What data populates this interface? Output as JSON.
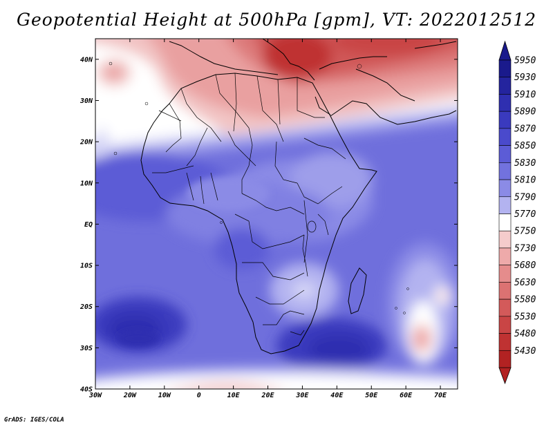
{
  "title": "Geopotential Height at 500hPa [gpm], VT: 2022012512",
  "credit": "GrADS: IGES/COLA",
  "map": {
    "lon_range": [
      -30,
      75
    ],
    "lat_range": [
      -40,
      45
    ],
    "lat_ticks": [
      {
        "value": 40,
        "label": "40N"
      },
      {
        "value": 30,
        "label": "30N"
      },
      {
        "value": 20,
        "label": "20N"
      },
      {
        "value": 10,
        "label": "10N"
      },
      {
        "value": 0,
        "label": "EQ"
      },
      {
        "value": -10,
        "label": "10S"
      },
      {
        "value": -20,
        "label": "20S"
      },
      {
        "value": -30,
        "label": "30S"
      },
      {
        "value": -40,
        "label": "40S"
      }
    ],
    "lon_ticks": [
      {
        "value": -30,
        "label": "30W"
      },
      {
        "value": -20,
        "label": "20W"
      },
      {
        "value": -10,
        "label": "10W"
      },
      {
        "value": 0,
        "label": "0"
      },
      {
        "value": 10,
        "label": "10E"
      },
      {
        "value": 20,
        "label": "20E"
      },
      {
        "value": 30,
        "label": "30E"
      },
      {
        "value": 40,
        "label": "40E"
      },
      {
        "value": 50,
        "label": "50E"
      },
      {
        "value": 60,
        "label": "60E"
      },
      {
        "value": 70,
        "label": "70E"
      }
    ]
  },
  "colorbar": {
    "levels": [
      {
        "label": "5950",
        "color": "#1a1a8c"
      },
      {
        "label": "5930",
        "color": "#24249e"
      },
      {
        "label": "5910",
        "color": "#2f2fb0"
      },
      {
        "label": "5890",
        "color": "#3a3abe"
      },
      {
        "label": "5870",
        "color": "#4a4acc"
      },
      {
        "label": "5850",
        "color": "#5c5cd6"
      },
      {
        "label": "5830",
        "color": "#7272de"
      },
      {
        "label": "5810",
        "color": "#8b8be6"
      },
      {
        "label": "5790",
        "color": "#b3b3f0"
      },
      {
        "label": "5770",
        "color": "#ffffff"
      },
      {
        "label": "5750",
        "color": "#f5cccc"
      },
      {
        "label": "5730",
        "color": "#eeaaaa"
      },
      {
        "label": "5680",
        "color": "#e58c8c"
      },
      {
        "label": "5630",
        "color": "#dc7272"
      },
      {
        "label": "5580",
        "color": "#d35a5a"
      },
      {
        "label": "5530",
        "color": "#c94545"
      },
      {
        "label": "5480",
        "color": "#bf3232"
      },
      {
        "label": "5430",
        "color": "#b22222"
      }
    ],
    "top_color": "#1a1a8c",
    "bottom_color": "#b22222"
  }
}
